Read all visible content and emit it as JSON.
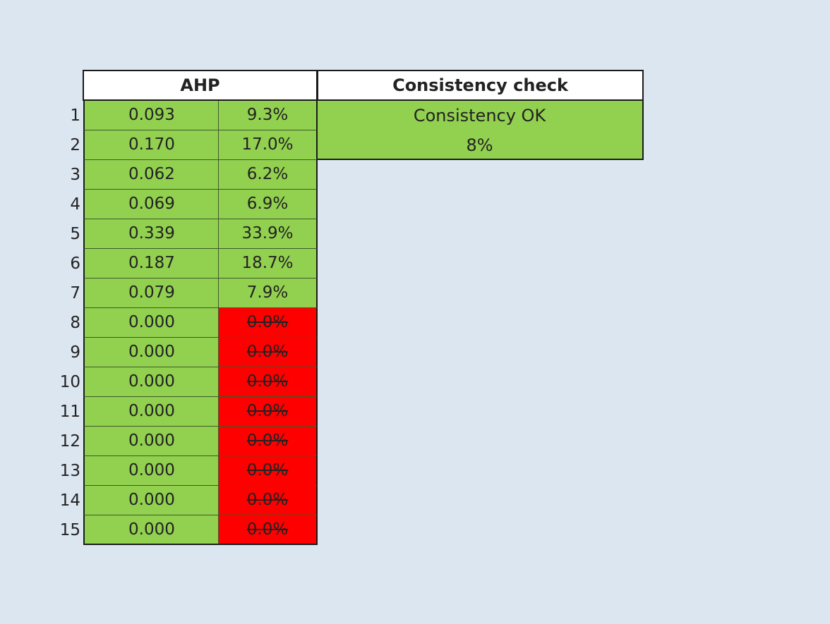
{
  "headers": {
    "ahp": "AHP",
    "consistency": "Consistency check"
  },
  "consistency": {
    "status": "Consistency OK",
    "ratio": "8%"
  },
  "rows": [
    {
      "num": "1",
      "weight": "0.093",
      "percent": "9.3%",
      "status": "ok"
    },
    {
      "num": "2",
      "weight": "0.170",
      "percent": "17.0%",
      "status": "ok"
    },
    {
      "num": "3",
      "weight": "0.062",
      "percent": "6.2%",
      "status": "ok"
    },
    {
      "num": "4",
      "weight": "0.069",
      "percent": "6.9%",
      "status": "ok"
    },
    {
      "num": "5",
      "weight": "0.339",
      "percent": "33.9%",
      "status": "ok"
    },
    {
      "num": "6",
      "weight": "0.187",
      "percent": "18.7%",
      "status": "ok"
    },
    {
      "num": "7",
      "weight": "0.079",
      "percent": "7.9%",
      "status": "ok"
    },
    {
      "num": "8",
      "weight": "0.000",
      "percent": "0.0%",
      "status": "empty"
    },
    {
      "num": "9",
      "weight": "0.000",
      "percent": "0.0%",
      "status": "empty"
    },
    {
      "num": "10",
      "weight": "0.000",
      "percent": "0.0%",
      "status": "empty"
    },
    {
      "num": "11",
      "weight": "0.000",
      "percent": "0.0%",
      "status": "empty"
    },
    {
      "num": "12",
      "weight": "0.000",
      "percent": "0.0%",
      "status": "empty"
    },
    {
      "num": "13",
      "weight": "0.000",
      "percent": "0.0%",
      "status": "empty"
    },
    {
      "num": "14",
      "weight": "0.000",
      "percent": "0.0%",
      "status": "empty"
    },
    {
      "num": "15",
      "weight": "0.000",
      "percent": "0.0%",
      "status": "empty"
    }
  ],
  "colors": {
    "background": "#dce6f1",
    "ok": "#92d050",
    "empty": "#ff0000",
    "header": "#ffffff"
  }
}
